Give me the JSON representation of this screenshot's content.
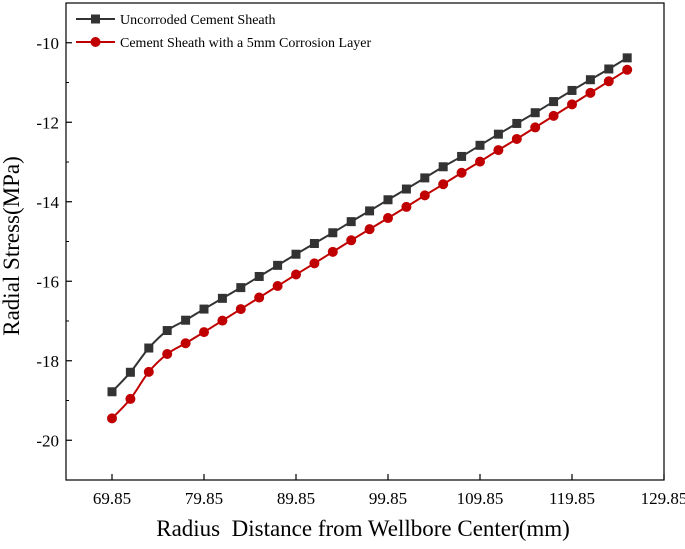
{
  "chart_data": {
    "type": "line",
    "title": "",
    "xlabel": "Radius  Distance from Wellbore Center(mm)",
    "ylabel": "Radial Stress(MPa)",
    "xlim": [
      64.85,
      129.85
    ],
    "ylim": [
      -21,
      -9
    ],
    "xticks": [
      69.85,
      79.85,
      89.85,
      99.85,
      109.85,
      119.85,
      129.85
    ],
    "xtick_labels": [
      "69.85",
      "79.85",
      "89.85",
      "99.85",
      "109.85",
      "119.85",
      "129.85"
    ],
    "yticks": [
      -20,
      -18,
      -16,
      -14,
      -12,
      -10
    ],
    "ytick_labels": [
      "-20",
      "-18",
      "-16",
      "-14",
      "-12",
      "-10"
    ],
    "legend_position": "top-left",
    "series": [
      {
        "name": "Uncorroded Cement Sheath",
        "color": "#333333",
        "marker": "square",
        "x": [
          69.85,
          71.85,
          73.85,
          75.85,
          77.85,
          79.85,
          81.85,
          83.85,
          85.85,
          87.85,
          89.85,
          91.85,
          93.85,
          95.85,
          97.85,
          99.85,
          101.85,
          103.85,
          105.85,
          107.85,
          109.85,
          111.85,
          113.85,
          115.85,
          117.85,
          119.85,
          121.85,
          123.85,
          125.85
        ],
        "y": [
          -18.78,
          -18.29,
          -17.68,
          -17.24,
          -16.98,
          -16.7,
          -16.43,
          -16.16,
          -15.88,
          -15.6,
          -15.32,
          -15.05,
          -14.78,
          -14.5,
          -14.23,
          -13.95,
          -13.68,
          -13.4,
          -13.12,
          -12.86,
          -12.58,
          -12.3,
          -12.03,
          -11.76,
          -11.48,
          -11.2,
          -10.93,
          -10.66,
          -10.38
        ]
      },
      {
        "name": "Cement Sheath with a 5mm Corrosion Layer",
        "color": "#c00000",
        "marker": "circle",
        "x": [
          69.85,
          71.85,
          73.85,
          75.85,
          77.85,
          79.85,
          81.85,
          83.85,
          85.85,
          87.85,
          89.85,
          91.85,
          93.85,
          95.85,
          97.85,
          99.85,
          101.85,
          103.85,
          105.85,
          107.85,
          109.85,
          111.85,
          113.85,
          115.85,
          117.85,
          119.85,
          121.85,
          123.85,
          125.85
        ],
        "y": [
          -19.45,
          -18.96,
          -18.28,
          -17.83,
          -17.56,
          -17.28,
          -16.99,
          -16.7,
          -16.41,
          -16.12,
          -15.83,
          -15.55,
          -15.26,
          -14.97,
          -14.69,
          -14.41,
          -14.13,
          -13.84,
          -13.56,
          -13.27,
          -12.99,
          -12.7,
          -12.42,
          -12.13,
          -11.84,
          -11.55,
          -11.26,
          -10.97,
          -10.68
        ]
      }
    ]
  }
}
